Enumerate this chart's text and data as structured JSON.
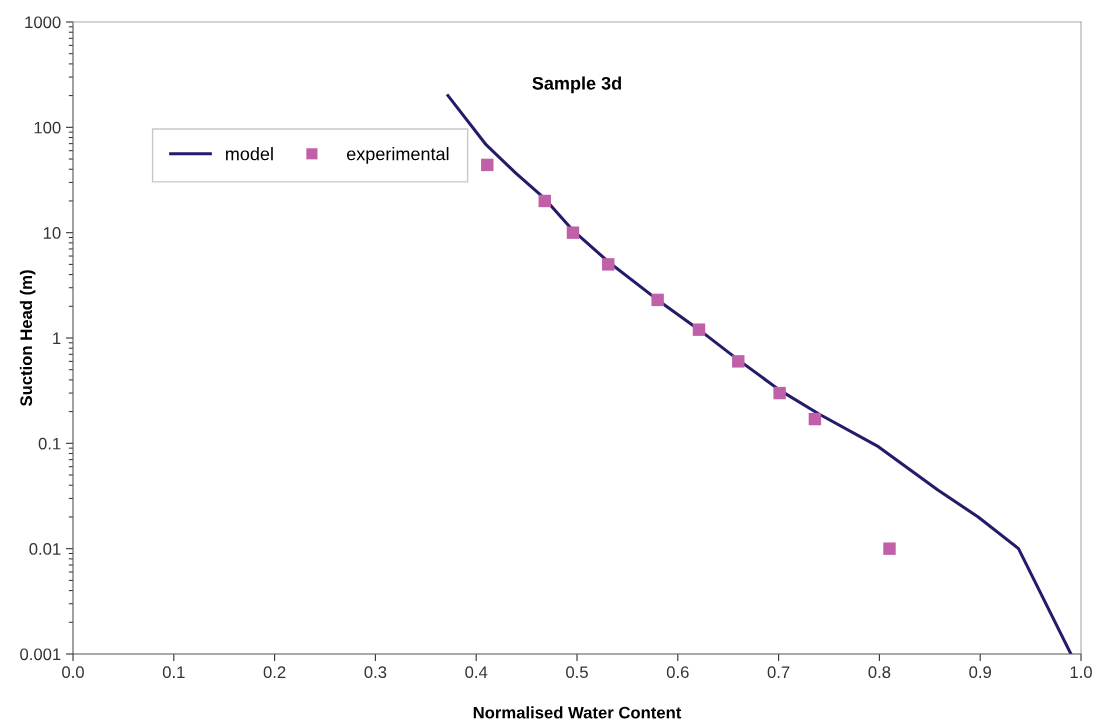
{
  "chart_data": {
    "type": "line",
    "title": "Sample 3d",
    "xlabel": "Normalised Water Content",
    "ylabel": "Suction Head (m)",
    "series": [
      {
        "name": "model",
        "color": "#231c6b",
        "marker": "none",
        "line_style": "solid",
        "x": [
          0.372,
          0.41,
          0.439,
          0.468,
          0.496,
          0.531,
          0.58,
          0.621,
          0.66,
          0.701,
          0.74,
          0.799,
          0.858,
          0.898,
          0.938,
          0.99
        ],
        "values": [
          200,
          68,
          37,
          21,
          10.5,
          5.3,
          2.3,
          1.2,
          0.62,
          0.32,
          0.19,
          0.093,
          0.036,
          0.02,
          0.01,
          0.001
        ]
      },
      {
        "name": "experimental",
        "type": "scatter",
        "color": "#c060a8",
        "marker": "square",
        "x": [
          0.411,
          0.468,
          0.496,
          0.531,
          0.58,
          0.621,
          0.66,
          0.701,
          0.736,
          0.81
        ],
        "values": [
          44,
          20,
          10,
          5,
          2.3,
          1.2,
          0.6,
          0.3,
          0.17,
          0.01
        ]
      }
    ],
    "log": "y",
    "xlim": [
      0.0,
      1.0
    ],
    "xticks": [
      {
        "value": 0.0,
        "label": "0.0"
      },
      0.1,
      0.2,
      0.3,
      0.4,
      0.5,
      0.6,
      0.7,
      0.8,
      0.9,
      {
        "value": 1.0,
        "label": "1.0"
      }
    ],
    "ylim": [
      0.001,
      1000
    ],
    "yticks": [
      0.001,
      0.01,
      0.1,
      1,
      10,
      100,
      1000
    ],
    "grid": false,
    "legend": "top left"
  }
}
